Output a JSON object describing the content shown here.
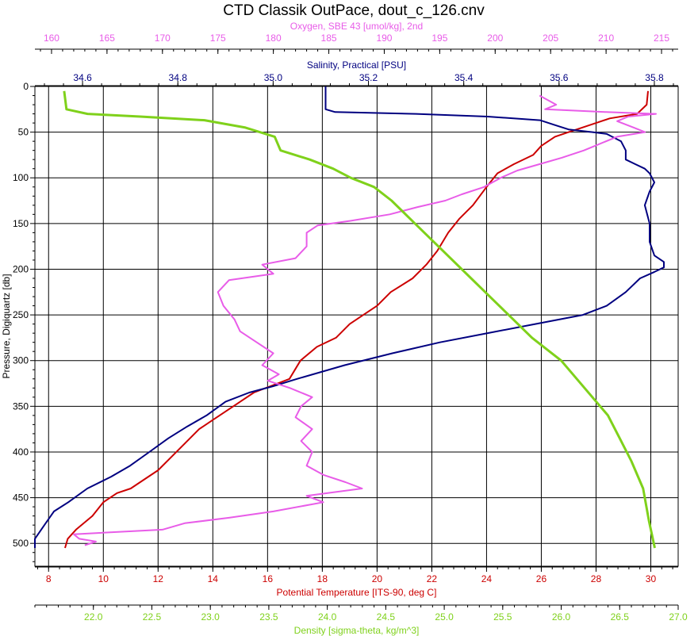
{
  "chart_data": {
    "type": "line",
    "title": "CTD Classik OutPace, dout_c_126.cnv",
    "y_axis": {
      "label": "Pressure, Digiquartz [db]",
      "range": [
        0,
        525
      ],
      "inverted": true,
      "ticks": [
        "0",
        "50",
        "100",
        "150",
        "200",
        "250",
        "300",
        "350",
        "400",
        "450",
        "500"
      ],
      "color": "#000000"
    },
    "top_axes": [
      {
        "key": "oxygen",
        "label": "Oxygen, SBE 43 [umol/kg], 2nd",
        "color": "#e85ce8",
        "range": [
          158.5,
          216.5
        ],
        "ticks": [
          "160",
          "165",
          "170",
          "175",
          "180",
          "185",
          "190",
          "195",
          "200",
          "205",
          "210",
          "215"
        ]
      },
      {
        "key": "salinity",
        "label": "Salinity, Practical [PSU]",
        "color": "#000080",
        "range": [
          34.5,
          35.85
        ],
        "ticks": [
          "34.6",
          "34.8",
          "35.0",
          "35.2",
          "35.4",
          "35.6",
          "35.8"
        ]
      }
    ],
    "bottom_axes": [
      {
        "key": "temperature",
        "label": "Potential Temperature [ITS-90, deg C]",
        "color": "#cc0000",
        "range": [
          7.5,
          31.0
        ],
        "ticks": [
          "8",
          "10",
          "12",
          "14",
          "16",
          "18",
          "20",
          "22",
          "24",
          "26",
          "28",
          "30"
        ]
      },
      {
        "key": "density",
        "label": "Density [sigma-theta, kg/m^3]",
        "color": "#7fd11b",
        "range": [
          21.5,
          27.0
        ],
        "ticks": [
          "22.0",
          "22.5",
          "23.0",
          "23.5",
          "24.0",
          "24.5",
          "25.0",
          "25.5",
          "26.0",
          "26.5",
          "27.0"
        ]
      }
    ],
    "grid": true,
    "series": [
      {
        "key": "temperature",
        "color": "#cc0000",
        "points": [
          [
            29.9,
            5
          ],
          [
            29.85,
            20
          ],
          [
            29.5,
            30
          ],
          [
            28.5,
            35
          ],
          [
            28.0,
            40
          ],
          [
            27.0,
            50
          ],
          [
            26.5,
            55
          ],
          [
            26.0,
            65
          ],
          [
            25.7,
            75
          ],
          [
            25.0,
            85
          ],
          [
            24.4,
            95
          ],
          [
            24.0,
            110
          ],
          [
            23.5,
            130
          ],
          [
            23.0,
            145
          ],
          [
            22.6,
            160
          ],
          [
            22.2,
            180
          ],
          [
            21.8,
            195
          ],
          [
            21.3,
            210
          ],
          [
            20.5,
            225
          ],
          [
            20.0,
            240
          ],
          [
            19.5,
            250
          ],
          [
            19.0,
            260
          ],
          [
            18.5,
            275
          ],
          [
            17.8,
            285
          ],
          [
            17.2,
            300
          ],
          [
            16.8,
            320
          ],
          [
            15.5,
            335
          ],
          [
            15.0,
            345
          ],
          [
            14.5,
            355
          ],
          [
            14.0,
            365
          ],
          [
            13.5,
            375
          ],
          [
            13.0,
            390
          ],
          [
            12.5,
            405
          ],
          [
            12.0,
            420
          ],
          [
            11.5,
            430
          ],
          [
            11.0,
            440
          ],
          [
            10.5,
            445
          ],
          [
            10.0,
            455
          ],
          [
            9.6,
            470
          ],
          [
            9.0,
            485
          ],
          [
            8.7,
            495
          ],
          [
            8.6,
            505
          ]
        ]
      },
      {
        "key": "salinity",
        "color": "#000080",
        "points": [
          [
            35.11,
            0
          ],
          [
            35.11,
            25
          ],
          [
            35.13,
            28
          ],
          [
            35.3,
            30
          ],
          [
            35.45,
            33
          ],
          [
            35.56,
            37
          ],
          [
            35.59,
            42
          ],
          [
            35.62,
            47
          ],
          [
            35.67,
            50
          ],
          [
            35.7,
            52
          ],
          [
            35.73,
            60
          ],
          [
            35.74,
            70
          ],
          [
            35.74,
            80
          ],
          [
            35.76,
            85
          ],
          [
            35.78,
            90
          ],
          [
            35.79,
            95
          ],
          [
            35.8,
            105
          ],
          [
            35.79,
            115
          ],
          [
            35.78,
            130
          ],
          [
            35.79,
            150
          ],
          [
            35.79,
            170
          ],
          [
            35.8,
            185
          ],
          [
            35.82,
            192
          ],
          [
            35.82,
            198
          ],
          [
            35.8,
            203
          ],
          [
            35.77,
            210
          ],
          [
            35.74,
            225
          ],
          [
            35.7,
            240
          ],
          [
            35.65,
            250
          ],
          [
            35.55,
            260
          ],
          [
            35.45,
            270
          ],
          [
            35.35,
            280
          ],
          [
            35.25,
            292
          ],
          [
            35.15,
            305
          ],
          [
            35.05,
            320
          ],
          [
            35.0,
            328
          ],
          [
            34.95,
            335
          ],
          [
            34.9,
            345
          ],
          [
            34.86,
            360
          ],
          [
            34.82,
            372
          ],
          [
            34.78,
            385
          ],
          [
            34.74,
            400
          ],
          [
            34.7,
            415
          ],
          [
            34.66,
            427
          ],
          [
            34.61,
            440
          ],
          [
            34.57,
            455
          ],
          [
            34.54,
            465
          ],
          [
            34.52,
            480
          ],
          [
            34.5,
            495
          ],
          [
            34.5,
            505
          ]
        ]
      },
      {
        "key": "oxygen",
        "color": "#e85ce8",
        "points": [
          [
            204,
            10
          ],
          [
            205.5,
            20
          ],
          [
            204.5,
            25
          ],
          [
            210,
            28
          ],
          [
            214.5,
            30
          ],
          [
            212,
            33
          ],
          [
            211,
            38
          ],
          [
            212.5,
            45
          ],
          [
            213.5,
            50
          ],
          [
            211,
            55
          ],
          [
            209,
            65
          ],
          [
            208,
            70
          ],
          [
            206,
            78
          ],
          [
            204,
            85
          ],
          [
            202,
            92
          ],
          [
            200.5,
            100
          ],
          [
            199,
            110
          ],
          [
            197,
            118
          ],
          [
            195.5,
            125
          ],
          [
            193,
            132
          ],
          [
            190.5,
            140
          ],
          [
            187,
            147
          ],
          [
            184,
            152
          ],
          [
            183,
            160
          ],
          [
            183,
            175
          ],
          [
            182,
            188
          ],
          [
            179,
            195
          ],
          [
            180,
            205
          ],
          [
            176,
            212
          ],
          [
            175,
            225
          ],
          [
            175.5,
            240
          ],
          [
            176.5,
            255
          ],
          [
            177,
            268
          ],
          [
            178.5,
            280
          ],
          [
            180,
            292
          ],
          [
            179,
            305
          ],
          [
            180.5,
            315
          ],
          [
            179.5,
            322
          ],
          [
            181.5,
            330
          ],
          [
            183.5,
            340
          ],
          [
            182.5,
            350
          ],
          [
            182,
            362
          ],
          [
            183.5,
            375
          ],
          [
            182.5,
            388
          ],
          [
            183.5,
            400
          ],
          [
            183,
            415
          ],
          [
            184.5,
            425
          ],
          [
            186.5,
            433
          ],
          [
            188,
            440
          ],
          [
            183,
            448
          ],
          [
            184.5,
            455
          ],
          [
            180,
            465
          ],
          [
            176,
            472
          ],
          [
            172,
            478
          ],
          [
            170,
            485
          ],
          [
            162,
            490
          ],
          [
            162.5,
            495
          ],
          [
            164,
            498
          ],
          [
            163,
            502
          ]
        ]
      },
      {
        "key": "density",
        "color": "#7fd11b",
        "points": [
          [
            21.75,
            5
          ],
          [
            21.77,
            25
          ],
          [
            21.95,
            30
          ],
          [
            22.4,
            33
          ],
          [
            22.95,
            37
          ],
          [
            23.3,
            45
          ],
          [
            23.55,
            55
          ],
          [
            23.6,
            70
          ],
          [
            23.85,
            80
          ],
          [
            24.05,
            90
          ],
          [
            24.2,
            100
          ],
          [
            24.4,
            110
          ],
          [
            24.55,
            125
          ],
          [
            24.75,
            150
          ],
          [
            24.95,
            175
          ],
          [
            25.15,
            200
          ],
          [
            25.35,
            225
          ],
          [
            25.55,
            250
          ],
          [
            25.75,
            275
          ],
          [
            26.0,
            300
          ],
          [
            26.2,
            330
          ],
          [
            26.4,
            360
          ],
          [
            26.5,
            385
          ],
          [
            26.6,
            410
          ],
          [
            26.7,
            440
          ],
          [
            26.75,
            475
          ],
          [
            26.8,
            505
          ]
        ]
      }
    ]
  }
}
